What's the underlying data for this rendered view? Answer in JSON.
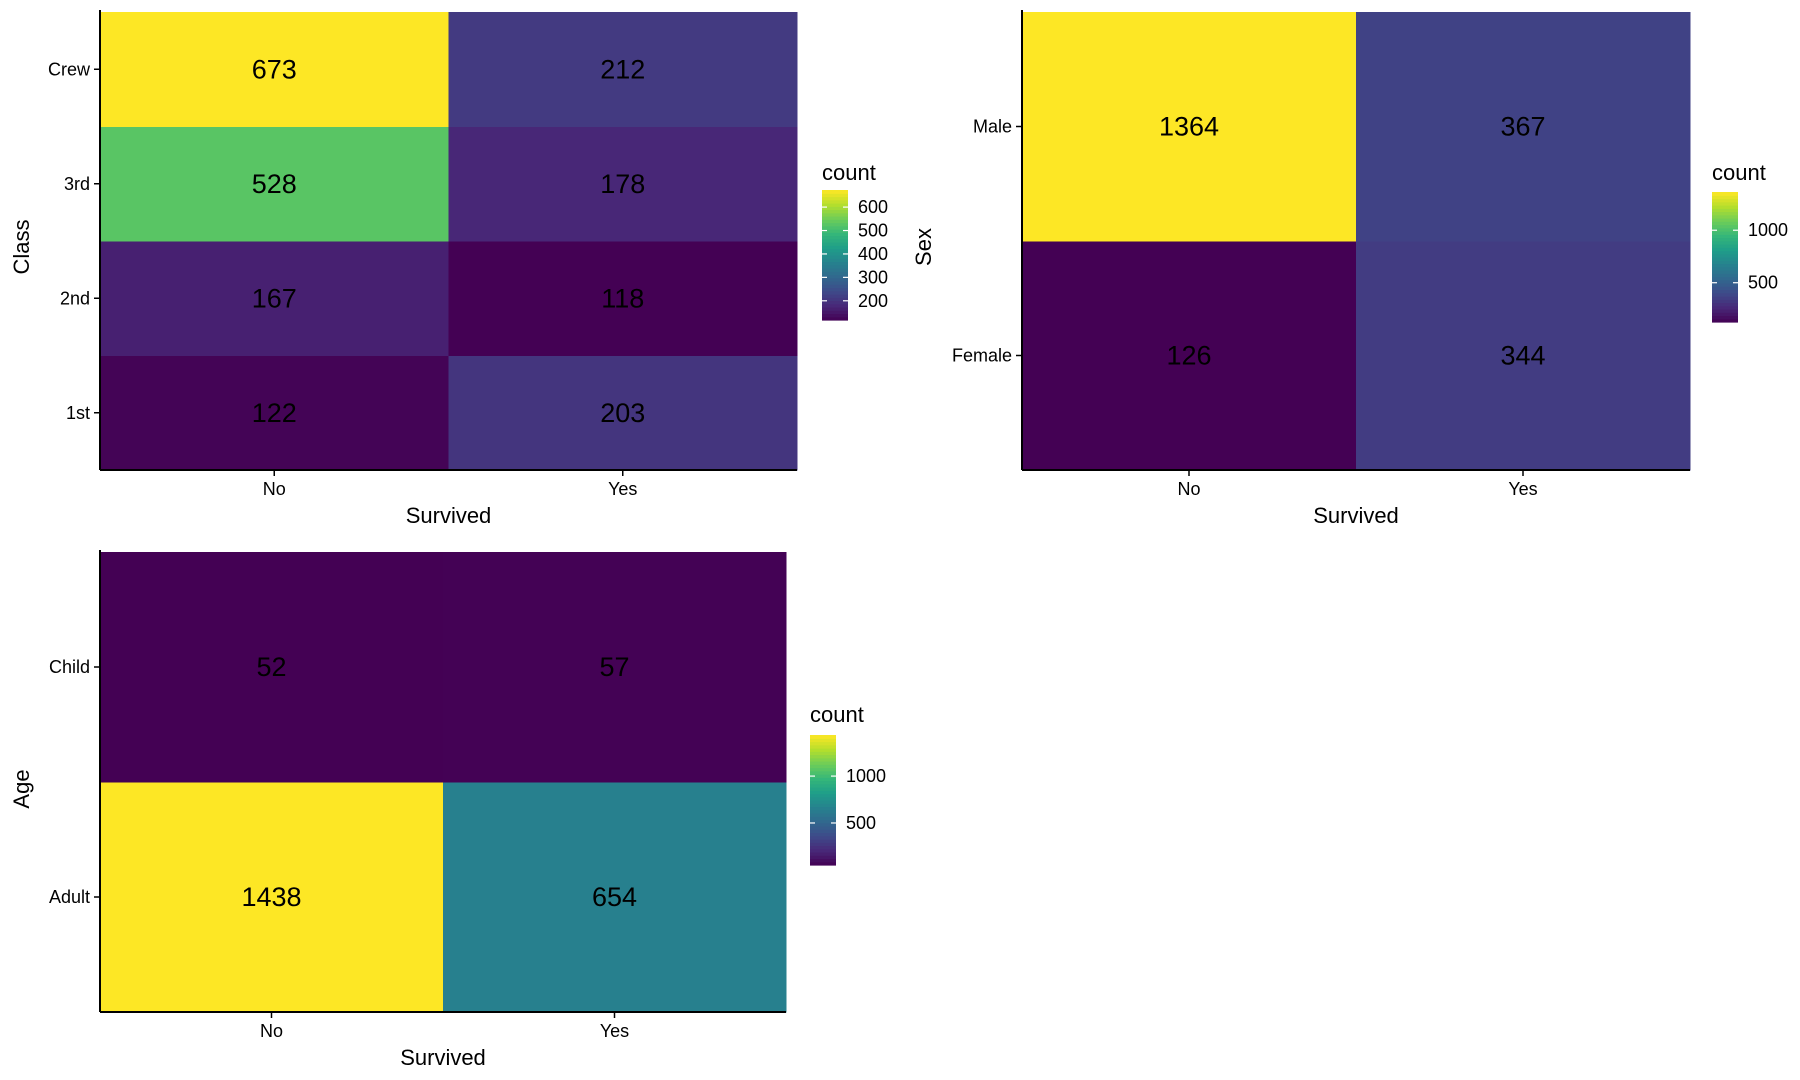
{
  "chart_data": [
    {
      "type": "heatmap",
      "xlabel": "Survived",
      "ylabel": "Class",
      "x_categories": [
        "No",
        "Yes"
      ],
      "y_categories": [
        "1st",
        "2nd",
        "3rd",
        "Crew"
      ],
      "values": {
        "1st": [
          122,
          203
        ],
        "2nd": [
          167,
          118
        ],
        "3rd": [
          528,
          178
        ],
        "Crew": [
          673,
          212
        ]
      },
      "legend": {
        "title": "count",
        "ticks": [
          200,
          300,
          400,
          500,
          600
        ],
        "range": [
          118,
          673
        ]
      },
      "colorscale": "viridis"
    },
    {
      "type": "heatmap",
      "xlabel": "Survived",
      "ylabel": "Sex",
      "x_categories": [
        "No",
        "Yes"
      ],
      "y_categories": [
        "Female",
        "Male"
      ],
      "values": {
        "Female": [
          126,
          344
        ],
        "Male": [
          1364,
          367
        ]
      },
      "legend": {
        "title": "count",
        "ticks": [
          500,
          1000
        ],
        "range": [
          126,
          1364
        ]
      },
      "colorscale": "viridis"
    },
    {
      "type": "heatmap",
      "xlabel": "Survived",
      "ylabel": "Age",
      "x_categories": [
        "No",
        "Yes"
      ],
      "y_categories": [
        "Adult",
        "Child"
      ],
      "values": {
        "Adult": [
          1438,
          654
        ],
        "Child": [
          52,
          57
        ]
      },
      "legend": {
        "title": "count",
        "ticks": [
          500,
          1000
        ],
        "range": [
          52,
          1438
        ]
      },
      "colorscale": "viridis"
    }
  ]
}
